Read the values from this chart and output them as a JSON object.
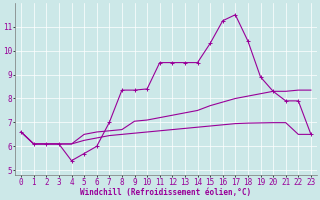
{
  "xlabel": "Windchill (Refroidissement éolien,°C)",
  "bg_color": "#cce8e8",
  "line_color": "#990099",
  "grid_color": "#ffffff",
  "x": [
    0,
    1,
    2,
    3,
    4,
    5,
    6,
    7,
    8,
    9,
    10,
    11,
    12,
    13,
    14,
    15,
    16,
    17,
    18,
    19,
    20,
    21,
    22,
    23
  ],
  "line1": [
    6.6,
    6.1,
    6.1,
    6.1,
    5.4,
    5.7,
    6.0,
    7.0,
    8.35,
    8.35,
    8.4,
    9.5,
    9.5,
    9.5,
    9.5,
    10.3,
    11.25,
    11.5,
    10.4,
    8.9,
    8.3,
    7.9,
    7.9,
    6.5
  ],
  "line2": [
    6.6,
    6.1,
    6.1,
    6.1,
    6.1,
    6.5,
    6.6,
    6.65,
    6.7,
    7.05,
    7.1,
    7.2,
    7.3,
    7.4,
    7.5,
    7.7,
    7.85,
    8.0,
    8.1,
    8.2,
    8.3,
    8.3,
    8.35,
    8.35
  ],
  "line3": [
    6.6,
    6.1,
    6.1,
    6.1,
    6.1,
    6.25,
    6.35,
    6.45,
    6.5,
    6.55,
    6.6,
    6.65,
    6.7,
    6.75,
    6.8,
    6.85,
    6.9,
    6.95,
    6.97,
    6.98,
    6.99,
    6.99,
    6.5,
    6.5
  ],
  "ylim": [
    4.8,
    12.0
  ],
  "yticks": [
    5,
    6,
    7,
    8,
    9,
    10,
    11
  ],
  "xlim": [
    -0.5,
    23.5
  ],
  "xticks": [
    0,
    1,
    2,
    3,
    4,
    5,
    6,
    7,
    8,
    9,
    10,
    11,
    12,
    13,
    14,
    15,
    16,
    17,
    18,
    19,
    20,
    21,
    22,
    23
  ],
  "tick_fontsize": 5.5,
  "xlabel_fontsize": 5.5,
  "linewidth": 0.8,
  "marker_size": 2.5,
  "marker_ew": 0.7
}
